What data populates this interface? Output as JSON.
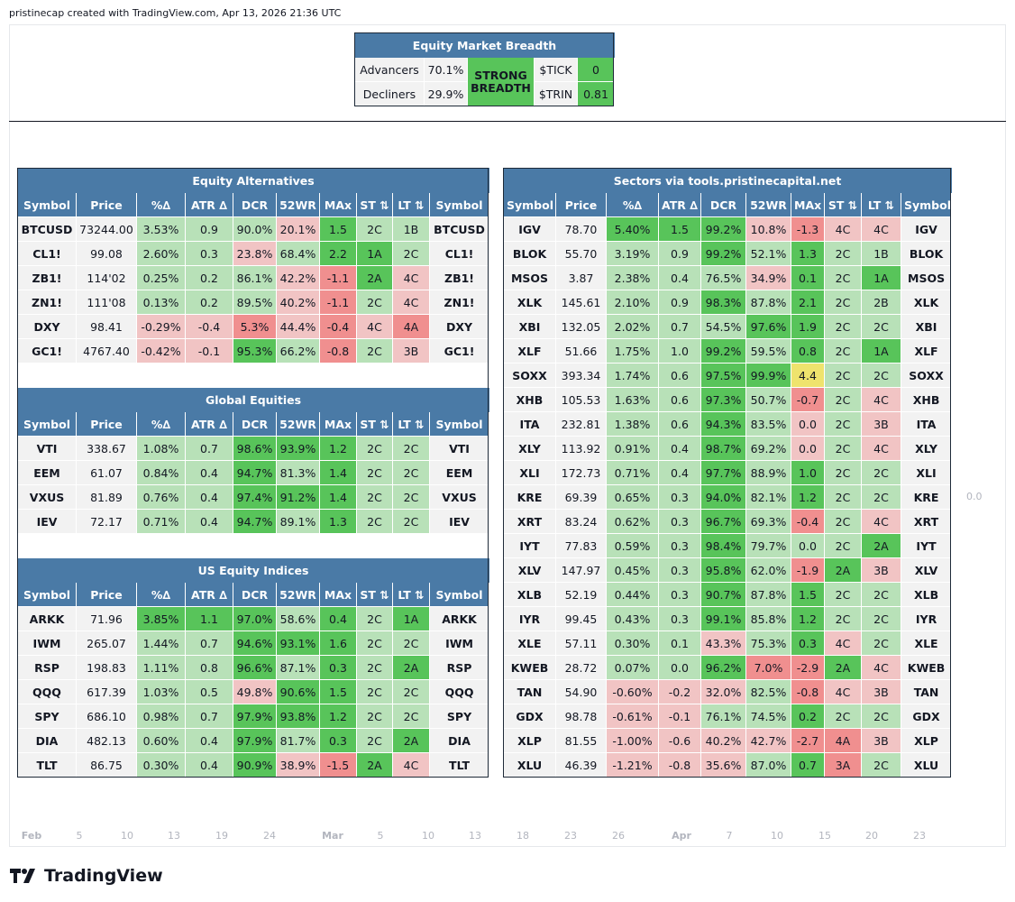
{
  "attribution": "pristinecap created with TradingView.com, Apr 13, 2026 21:36 UTC",
  "logo_text": "TradingView",
  "value_label": "0.0",
  "xaxis": [
    "Feb",
    "5",
    "10",
    "13",
    "19",
    "24",
    "Mar",
    "5",
    "10",
    "13",
    "18",
    "23",
    "26",
    "Apr",
    "7",
    "10",
    "15",
    "20",
    "23"
  ],
  "breadth": {
    "title": "Equity Market Breadth",
    "advancers_label": "Advancers",
    "advancers_value": "70.1%",
    "decliners_label": "Decliners",
    "decliners_value": "29.9%",
    "status": "STRONG BREADTH",
    "tick_label": "$TICK",
    "tick_value": "0",
    "trin_label": "$TRIN",
    "trin_value": "0.81"
  },
  "headers": [
    "Symbol",
    "Price",
    "%∆",
    "ATR ∆",
    "DCR",
    "52WR",
    "MAx",
    "ST ⇅",
    "LT ⇅",
    "Symbol"
  ],
  "colors": {
    "w": "#f2f2f2",
    "dg": "#58c45a",
    "lg": "#b8e1b8",
    "lr": "#f1c4c4",
    "r": "#f08f8f",
    "y": "#efe36d",
    "header": "#4a7aa6"
  },
  "equity_alternatives": {
    "title": "Equity Alternatives",
    "rows": [
      {
        "cells": [
          "BTCUSD",
          "73244.00",
          "3.53%",
          "0.9",
          "90.0%",
          "20.1%",
          "1.5",
          "2C",
          "1B",
          "BTCUSD"
        ],
        "colors": [
          "w",
          "w",
          "lg",
          "lg",
          "lg",
          "lr",
          "dg",
          "lg",
          "lg",
          "w"
        ]
      },
      {
        "cells": [
          "CL1!",
          "99.08",
          "2.60%",
          "0.3",
          "23.8%",
          "68.4%",
          "2.2",
          "1A",
          "2C",
          "CL1!"
        ],
        "colors": [
          "w",
          "w",
          "lg",
          "lg",
          "lr",
          "lg",
          "dg",
          "dg",
          "lg",
          "w"
        ]
      },
      {
        "cells": [
          "ZB1!",
          "114'02",
          "0.25%",
          "0.2",
          "86.1%",
          "42.2%",
          "-1.1",
          "2A",
          "4C",
          "ZB1!"
        ],
        "colors": [
          "w",
          "w",
          "lg",
          "lg",
          "lg",
          "lr",
          "r",
          "dg",
          "lr",
          "w"
        ]
      },
      {
        "cells": [
          "ZN1!",
          "111'08",
          "0.13%",
          "0.2",
          "89.5%",
          "40.2%",
          "-1.1",
          "2C",
          "4C",
          "ZN1!"
        ],
        "colors": [
          "w",
          "w",
          "lg",
          "lg",
          "lg",
          "lr",
          "r",
          "lg",
          "lr",
          "w"
        ]
      },
      {
        "cells": [
          "DXY",
          "98.41",
          "-0.29%",
          "-0.4",
          "5.3%",
          "44.4%",
          "-0.4",
          "4C",
          "4A",
          "DXY"
        ],
        "colors": [
          "w",
          "w",
          "lr",
          "lr",
          "r",
          "lr",
          "r",
          "lr",
          "r",
          "w"
        ]
      },
      {
        "cells": [
          "GC1!",
          "4767.40",
          "-0.42%",
          "-0.1",
          "95.3%",
          "66.2%",
          "-0.8",
          "2C",
          "3B",
          "GC1!"
        ],
        "colors": [
          "w",
          "w",
          "lr",
          "lr",
          "dg",
          "lg",
          "r",
          "lg",
          "lr",
          "w"
        ]
      }
    ]
  },
  "global_equities": {
    "title": "Global Equities",
    "rows": [
      {
        "cells": [
          "VTI",
          "338.67",
          "1.08%",
          "0.7",
          "98.6%",
          "93.9%",
          "1.2",
          "2C",
          "2C",
          "VTI"
        ],
        "colors": [
          "w",
          "w",
          "lg",
          "lg",
          "dg",
          "dg",
          "dg",
          "lg",
          "lg",
          "w"
        ]
      },
      {
        "cells": [
          "EEM",
          "61.07",
          "0.84%",
          "0.4",
          "94.7%",
          "81.3%",
          "1.4",
          "2C",
          "2C",
          "EEM"
        ],
        "colors": [
          "w",
          "w",
          "lg",
          "lg",
          "dg",
          "lg",
          "dg",
          "lg",
          "lg",
          "w"
        ]
      },
      {
        "cells": [
          "VXUS",
          "81.89",
          "0.76%",
          "0.4",
          "97.4%",
          "91.2%",
          "1.4",
          "2C",
          "2C",
          "VXUS"
        ],
        "colors": [
          "w",
          "w",
          "lg",
          "lg",
          "dg",
          "dg",
          "dg",
          "lg",
          "lg",
          "w"
        ]
      },
      {
        "cells": [
          "IEV",
          "72.17",
          "0.71%",
          "0.4",
          "94.7%",
          "89.1%",
          "1.3",
          "2C",
          "2C",
          "IEV"
        ],
        "colors": [
          "w",
          "w",
          "lg",
          "lg",
          "dg",
          "lg",
          "dg",
          "lg",
          "lg",
          "w"
        ]
      }
    ]
  },
  "us_equity_indices": {
    "title": "US Equity Indices",
    "rows": [
      {
        "cells": [
          "ARKK",
          "71.96",
          "3.85%",
          "1.1",
          "97.0%",
          "58.6%",
          "0.4",
          "2C",
          "1A",
          "ARKK"
        ],
        "colors": [
          "w",
          "w",
          "dg",
          "dg",
          "dg",
          "lg",
          "dg",
          "lg",
          "dg",
          "w"
        ]
      },
      {
        "cells": [
          "IWM",
          "265.07",
          "1.44%",
          "0.7",
          "94.6%",
          "93.1%",
          "1.6",
          "2C",
          "2C",
          "IWM"
        ],
        "colors": [
          "w",
          "w",
          "lg",
          "lg",
          "dg",
          "dg",
          "dg",
          "lg",
          "lg",
          "w"
        ]
      },
      {
        "cells": [
          "RSP",
          "198.83",
          "1.11%",
          "0.8",
          "96.6%",
          "87.1%",
          "0.3",
          "2C",
          "2A",
          "RSP"
        ],
        "colors": [
          "w",
          "w",
          "lg",
          "lg",
          "dg",
          "lg",
          "dg",
          "lg",
          "dg",
          "w"
        ]
      },
      {
        "cells": [
          "QQQ",
          "617.39",
          "1.03%",
          "0.5",
          "49.8%",
          "90.6%",
          "1.5",
          "2C",
          "2C",
          "QQQ"
        ],
        "colors": [
          "w",
          "w",
          "lg",
          "lg",
          "lr",
          "dg",
          "dg",
          "lg",
          "lg",
          "w"
        ]
      },
      {
        "cells": [
          "SPY",
          "686.10",
          "0.98%",
          "0.7",
          "97.9%",
          "93.8%",
          "1.2",
          "2C",
          "2C",
          "SPY"
        ],
        "colors": [
          "w",
          "w",
          "lg",
          "lg",
          "dg",
          "dg",
          "dg",
          "lg",
          "lg",
          "w"
        ]
      },
      {
        "cells": [
          "DIA",
          "482.13",
          "0.60%",
          "0.4",
          "97.9%",
          "81.7%",
          "0.3",
          "2C",
          "2A",
          "DIA"
        ],
        "colors": [
          "w",
          "w",
          "lg",
          "lg",
          "dg",
          "lg",
          "dg",
          "lg",
          "dg",
          "w"
        ]
      },
      {
        "cells": [
          "TLT",
          "86.75",
          "0.30%",
          "0.4",
          "90.9%",
          "38.9%",
          "-1.5",
          "2A",
          "4C",
          "TLT"
        ],
        "colors": [
          "w",
          "w",
          "lg",
          "lg",
          "dg",
          "lr",
          "r",
          "dg",
          "lr",
          "w"
        ]
      }
    ]
  },
  "sectors": {
    "title": "Sectors via tools.pristinecapital.net",
    "rows": [
      {
        "cells": [
          "IGV",
          "78.70",
          "5.40%",
          "1.5",
          "99.2%",
          "10.8%",
          "-1.3",
          "4C",
          "4C",
          "IGV"
        ],
        "colors": [
          "w",
          "w",
          "dg",
          "dg",
          "dg",
          "lr",
          "r",
          "lr",
          "lr",
          "w"
        ]
      },
      {
        "cells": [
          "BLOK",
          "55.70",
          "3.19%",
          "0.9",
          "99.2%",
          "52.1%",
          "1.3",
          "2C",
          "1B",
          "BLOK"
        ],
        "colors": [
          "w",
          "w",
          "lg",
          "lg",
          "dg",
          "lg",
          "dg",
          "lg",
          "lg",
          "w"
        ]
      },
      {
        "cells": [
          "MSOS",
          "3.87",
          "2.38%",
          "0.4",
          "76.5%",
          "34.9%",
          "0.1",
          "2C",
          "1A",
          "MSOS"
        ],
        "colors": [
          "w",
          "w",
          "lg",
          "lg",
          "lg",
          "lr",
          "dg",
          "lg",
          "dg",
          "w"
        ]
      },
      {
        "cells": [
          "XLK",
          "145.61",
          "2.10%",
          "0.9",
          "98.3%",
          "87.8%",
          "2.1",
          "2C",
          "2B",
          "XLK"
        ],
        "colors": [
          "w",
          "w",
          "lg",
          "lg",
          "dg",
          "lg",
          "dg",
          "lg",
          "lg",
          "w"
        ]
      },
      {
        "cells": [
          "XBI",
          "132.05",
          "2.02%",
          "0.7",
          "54.5%",
          "97.6%",
          "1.9",
          "2C",
          "2C",
          "XBI"
        ],
        "colors": [
          "w",
          "w",
          "lg",
          "lg",
          "lg",
          "dg",
          "dg",
          "lg",
          "lg",
          "w"
        ]
      },
      {
        "cells": [
          "XLF",
          "51.66",
          "1.75%",
          "1.0",
          "99.2%",
          "59.5%",
          "0.8",
          "2C",
          "1A",
          "XLF"
        ],
        "colors": [
          "w",
          "w",
          "lg",
          "lg",
          "dg",
          "lg",
          "dg",
          "lg",
          "dg",
          "w"
        ]
      },
      {
        "cells": [
          "SOXX",
          "393.34",
          "1.74%",
          "0.6",
          "97.5%",
          "99.9%",
          "4.4",
          "2C",
          "2C",
          "SOXX"
        ],
        "colors": [
          "w",
          "w",
          "lg",
          "lg",
          "dg",
          "dg",
          "y",
          "lg",
          "lg",
          "w"
        ]
      },
      {
        "cells": [
          "XHB",
          "105.53",
          "1.63%",
          "0.6",
          "97.3%",
          "50.7%",
          "-0.7",
          "2C",
          "4C",
          "XHB"
        ],
        "colors": [
          "w",
          "w",
          "lg",
          "lg",
          "dg",
          "lg",
          "r",
          "lg",
          "lr",
          "w"
        ]
      },
      {
        "cells": [
          "ITA",
          "232.81",
          "1.38%",
          "0.6",
          "94.3%",
          "83.5%",
          "0.0",
          "2C",
          "3B",
          "ITA"
        ],
        "colors": [
          "w",
          "w",
          "lg",
          "lg",
          "dg",
          "lg",
          "lr",
          "lg",
          "lr",
          "w"
        ]
      },
      {
        "cells": [
          "XLY",
          "113.92",
          "0.91%",
          "0.4",
          "98.7%",
          "69.2%",
          "0.0",
          "2C",
          "4C",
          "XLY"
        ],
        "colors": [
          "w",
          "w",
          "lg",
          "lg",
          "dg",
          "lg",
          "lr",
          "lg",
          "lr",
          "w"
        ]
      },
      {
        "cells": [
          "XLI",
          "172.73",
          "0.71%",
          "0.4",
          "97.7%",
          "88.9%",
          "1.0",
          "2C",
          "2C",
          "XLI"
        ],
        "colors": [
          "w",
          "w",
          "lg",
          "lg",
          "dg",
          "lg",
          "dg",
          "lg",
          "lg",
          "w"
        ]
      },
      {
        "cells": [
          "KRE",
          "69.39",
          "0.65%",
          "0.3",
          "94.0%",
          "82.1%",
          "1.2",
          "2C",
          "2C",
          "KRE"
        ],
        "colors": [
          "w",
          "w",
          "lg",
          "lg",
          "dg",
          "lg",
          "dg",
          "lg",
          "lg",
          "w"
        ]
      },
      {
        "cells": [
          "XRT",
          "83.24",
          "0.62%",
          "0.3",
          "96.7%",
          "69.3%",
          "-0.4",
          "2C",
          "4C",
          "XRT"
        ],
        "colors": [
          "w",
          "w",
          "lg",
          "lg",
          "dg",
          "lg",
          "r",
          "lg",
          "lr",
          "w"
        ]
      },
      {
        "cells": [
          "IYT",
          "77.83",
          "0.59%",
          "0.3",
          "98.4%",
          "79.7%",
          "0.0",
          "2C",
          "2A",
          "IYT"
        ],
        "colors": [
          "w",
          "w",
          "lg",
          "lg",
          "dg",
          "lg",
          "lg",
          "lg",
          "dg",
          "w"
        ]
      },
      {
        "cells": [
          "XLV",
          "147.97",
          "0.45%",
          "0.3",
          "95.8%",
          "62.0%",
          "-1.9",
          "2A",
          "3B",
          "XLV"
        ],
        "colors": [
          "w",
          "w",
          "lg",
          "lg",
          "dg",
          "lg",
          "r",
          "dg",
          "lr",
          "w"
        ]
      },
      {
        "cells": [
          "XLB",
          "52.19",
          "0.44%",
          "0.3",
          "90.7%",
          "87.8%",
          "1.5",
          "2C",
          "2C",
          "XLB"
        ],
        "colors": [
          "w",
          "w",
          "lg",
          "lg",
          "dg",
          "lg",
          "dg",
          "lg",
          "lg",
          "w"
        ]
      },
      {
        "cells": [
          "IYR",
          "99.45",
          "0.43%",
          "0.3",
          "99.1%",
          "85.8%",
          "1.2",
          "2C",
          "2C",
          "IYR"
        ],
        "colors": [
          "w",
          "w",
          "lg",
          "lg",
          "dg",
          "lg",
          "dg",
          "lg",
          "lg",
          "w"
        ]
      },
      {
        "cells": [
          "XLE",
          "57.11",
          "0.30%",
          "0.1",
          "43.3%",
          "75.3%",
          "0.3",
          "4C",
          "2C",
          "XLE"
        ],
        "colors": [
          "w",
          "w",
          "lg",
          "lg",
          "lr",
          "lg",
          "dg",
          "lr",
          "lg",
          "w"
        ]
      },
      {
        "cells": [
          "KWEB",
          "28.72",
          "0.07%",
          "0.0",
          "96.2%",
          "7.0%",
          "-2.9",
          "2A",
          "4C",
          "KWEB"
        ],
        "colors": [
          "w",
          "w",
          "lg",
          "lg",
          "dg",
          "r",
          "r",
          "dg",
          "lr",
          "w"
        ]
      },
      {
        "cells": [
          "TAN",
          "54.90",
          "-0.60%",
          "-0.2",
          "32.0%",
          "82.5%",
          "-0.8",
          "4C",
          "3B",
          "TAN"
        ],
        "colors": [
          "w",
          "w",
          "lr",
          "lr",
          "lr",
          "lg",
          "r",
          "lr",
          "lr",
          "w"
        ]
      },
      {
        "cells": [
          "GDX",
          "98.78",
          "-0.61%",
          "-0.1",
          "76.1%",
          "74.5%",
          "0.2",
          "2C",
          "2C",
          "GDX"
        ],
        "colors": [
          "w",
          "w",
          "lr",
          "lr",
          "lg",
          "lg",
          "dg",
          "lg",
          "lg",
          "w"
        ]
      },
      {
        "cells": [
          "XLP",
          "81.55",
          "-1.00%",
          "-0.6",
          "40.2%",
          "42.7%",
          "-2.7",
          "4A",
          "3B",
          "XLP"
        ],
        "colors": [
          "w",
          "w",
          "lr",
          "lr",
          "lr",
          "lr",
          "r",
          "r",
          "lr",
          "w"
        ]
      },
      {
        "cells": [
          "XLU",
          "46.39",
          "-1.21%",
          "-0.8",
          "35.6%",
          "87.0%",
          "0.7",
          "3A",
          "2C",
          "XLU"
        ],
        "colors": [
          "w",
          "w",
          "lr",
          "lr",
          "lr",
          "lg",
          "dg",
          "r",
          "lg",
          "w"
        ]
      }
    ]
  }
}
